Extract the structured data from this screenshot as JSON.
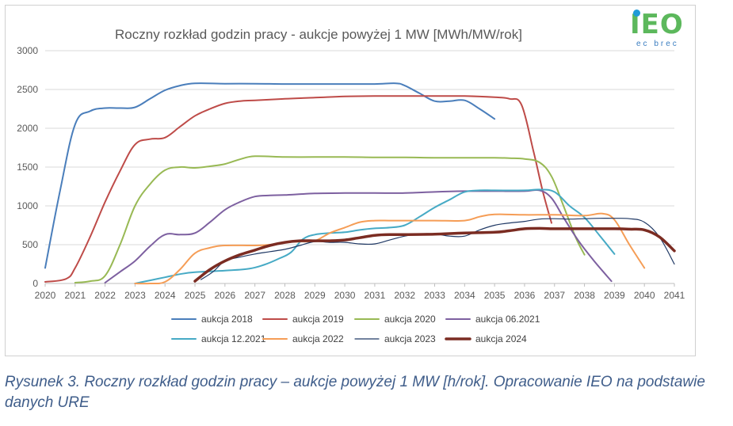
{
  "chart_data": {
    "type": "line",
    "title": "Roczny rozkład godzin pracy - aukcje powyżej 1 MW [MWh/MW/rok]",
    "xlabel": "",
    "ylabel": "",
    "xlim": [
      2020,
      2041
    ],
    "ylim": [
      0,
      3000
    ],
    "x_ticks": [
      "2020",
      "2021",
      "2022",
      "2023",
      "2024",
      "2025",
      "2026",
      "2027",
      "2028",
      "2029",
      "2030",
      "2031",
      "2032",
      "2033",
      "2034",
      "2035",
      "2036",
      "2037",
      "2038",
      "2039",
      "2040",
      "2041"
    ],
    "y_ticks": [
      "0",
      "500",
      "1000",
      "1500",
      "2000",
      "2500",
      "3000"
    ],
    "grid": "horizontal",
    "legend_position": "bottom",
    "series": [
      {
        "name": "aukcja 2018",
        "color": "#4a7ebb",
        "width": 2,
        "points": [
          [
            2020,
            200
          ],
          [
            2020.5,
            1200
          ],
          [
            2021,
            2050
          ],
          [
            2021.5,
            2220
          ],
          [
            2022,
            2260
          ],
          [
            2022.5,
            2260
          ],
          [
            2023,
            2270
          ],
          [
            2023.5,
            2380
          ],
          [
            2024,
            2490
          ],
          [
            2024.5,
            2550
          ],
          [
            2025,
            2580
          ],
          [
            2026,
            2575
          ],
          [
            2027,
            2575
          ],
          [
            2028,
            2570
          ],
          [
            2029,
            2570
          ],
          [
            2030,
            2570
          ],
          [
            2031,
            2570
          ],
          [
            2031.7,
            2580
          ],
          [
            2032,
            2550
          ],
          [
            2032.5,
            2450
          ],
          [
            2033,
            2350
          ],
          [
            2033.5,
            2350
          ],
          [
            2034,
            2360
          ],
          [
            2034.5,
            2250
          ],
          [
            2035,
            2120
          ]
        ]
      },
      {
        "name": "aukcja 2019",
        "color": "#be4b48",
        "width": 2,
        "points": [
          [
            2020,
            20
          ],
          [
            2020.7,
            60
          ],
          [
            2021,
            200
          ],
          [
            2021.5,
            600
          ],
          [
            2022,
            1050
          ],
          [
            2022.5,
            1450
          ],
          [
            2023,
            1790
          ],
          [
            2023.5,
            1860
          ],
          [
            2024,
            1880
          ],
          [
            2024.5,
            2020
          ],
          [
            2025,
            2160
          ],
          [
            2025.5,
            2250
          ],
          [
            2026,
            2320
          ],
          [
            2026.5,
            2350
          ],
          [
            2027,
            2360
          ],
          [
            2028,
            2380
          ],
          [
            2029,
            2395
          ],
          [
            2030,
            2410
          ],
          [
            2031,
            2415
          ],
          [
            2032,
            2415
          ],
          [
            2033,
            2415
          ],
          [
            2034,
            2415
          ],
          [
            2035,
            2400
          ],
          [
            2035.5,
            2380
          ],
          [
            2035.9,
            2300
          ],
          [
            2036.3,
            1700
          ],
          [
            2036.6,
            1200
          ],
          [
            2036.9,
            780
          ]
        ]
      },
      {
        "name": "aukcja 2020",
        "color": "#98b954",
        "width": 2,
        "points": [
          [
            2021,
            10
          ],
          [
            2021.5,
            30
          ],
          [
            2022,
            100
          ],
          [
            2022.5,
            500
          ],
          [
            2023,
            1000
          ],
          [
            2023.5,
            1280
          ],
          [
            2024,
            1460
          ],
          [
            2024.5,
            1500
          ],
          [
            2025,
            1490
          ],
          [
            2025.5,
            1510
          ],
          [
            2026,
            1540
          ],
          [
            2026.5,
            1600
          ],
          [
            2027,
            1640
          ],
          [
            2028,
            1630
          ],
          [
            2029,
            1630
          ],
          [
            2030,
            1630
          ],
          [
            2031,
            1625
          ],
          [
            2032,
            1625
          ],
          [
            2033,
            1620
          ],
          [
            2034,
            1620
          ],
          [
            2035,
            1620
          ],
          [
            2035.5,
            1615
          ],
          [
            2036,
            1605
          ],
          [
            2036.5,
            1560
          ],
          [
            2036.9,
            1380
          ],
          [
            2037.3,
            1000
          ],
          [
            2037.7,
            600
          ],
          [
            2038,
            370
          ]
        ]
      },
      {
        "name": "aukcja 06.2021",
        "color": "#7d60a0",
        "width": 2,
        "points": [
          [
            2022,
            10
          ],
          [
            2022.5,
            150
          ],
          [
            2023,
            290
          ],
          [
            2023.5,
            480
          ],
          [
            2024,
            630
          ],
          [
            2024.5,
            630
          ],
          [
            2025,
            650
          ],
          [
            2025.5,
            790
          ],
          [
            2026,
            950
          ],
          [
            2026.5,
            1050
          ],
          [
            2027,
            1120
          ],
          [
            2027.5,
            1135
          ],
          [
            2028,
            1140
          ],
          [
            2029,
            1160
          ],
          [
            2030,
            1165
          ],
          [
            2031,
            1165
          ],
          [
            2032,
            1165
          ],
          [
            2033,
            1180
          ],
          [
            2034,
            1190
          ],
          [
            2035,
            1190
          ],
          [
            2036,
            1190
          ],
          [
            2036.5,
            1200
          ],
          [
            2036.9,
            1100
          ],
          [
            2037.3,
            850
          ],
          [
            2037.8,
            550
          ],
          [
            2038.3,
            300
          ],
          [
            2038.9,
            30
          ]
        ]
      },
      {
        "name": "aukcja 12.2021",
        "color": "#46aac5",
        "width": 2,
        "points": [
          [
            2023,
            0
          ],
          [
            2023.5,
            40
          ],
          [
            2024,
            80
          ],
          [
            2024.5,
            120
          ],
          [
            2025,
            145
          ],
          [
            2026,
            165
          ],
          [
            2026.8,
            190
          ],
          [
            2027.3,
            240
          ],
          [
            2027.8,
            320
          ],
          [
            2028.2,
            400
          ],
          [
            2028.6,
            570
          ],
          [
            2029,
            630
          ],
          [
            2029.5,
            650
          ],
          [
            2030,
            660
          ],
          [
            2030.5,
            690
          ],
          [
            2031,
            710
          ],
          [
            2031.5,
            720
          ],
          [
            2032,
            750
          ],
          [
            2032.5,
            860
          ],
          [
            2033,
            980
          ],
          [
            2033.5,
            1080
          ],
          [
            2034,
            1180
          ],
          [
            2034.5,
            1200
          ],
          [
            2035,
            1200
          ],
          [
            2036,
            1200
          ],
          [
            2036.5,
            1210
          ],
          [
            2037,
            1180
          ],
          [
            2037.5,
            1000
          ],
          [
            2038,
            850
          ],
          [
            2038.5,
            620
          ],
          [
            2039,
            380
          ]
        ]
      },
      {
        "name": "aukcja 2022",
        "color": "#f59d56",
        "width": 2,
        "points": [
          [
            2023,
            0
          ],
          [
            2023.5,
            0
          ],
          [
            2024,
            20
          ],
          [
            2024.5,
            180
          ],
          [
            2025,
            390
          ],
          [
            2025.5,
            460
          ],
          [
            2026,
            490
          ],
          [
            2027,
            490
          ],
          [
            2027.5,
            500
          ],
          [
            2028,
            530
          ],
          [
            2028.5,
            540
          ],
          [
            2029,
            550
          ],
          [
            2029.5,
            650
          ],
          [
            2030,
            720
          ],
          [
            2030.5,
            790
          ],
          [
            2031,
            810
          ],
          [
            2031.5,
            810
          ],
          [
            2032,
            810
          ],
          [
            2033,
            810
          ],
          [
            2034,
            810
          ],
          [
            2034.5,
            860
          ],
          [
            2035,
            890
          ],
          [
            2036,
            885
          ],
          [
            2037,
            885
          ],
          [
            2038,
            875
          ],
          [
            2038.6,
            900
          ],
          [
            2039,
            820
          ],
          [
            2039.5,
            500
          ],
          [
            2040,
            200
          ]
        ]
      },
      {
        "name": "aukcja 2023",
        "color": "#1f3864",
        "width": 1.2,
        "points": [
          [
            2025.2,
            50
          ],
          [
            2025.6,
            150
          ],
          [
            2026,
            290
          ],
          [
            2026.5,
            340
          ],
          [
            2027,
            380
          ],
          [
            2027.5,
            410
          ],
          [
            2028,
            440
          ],
          [
            2028.5,
            490
          ],
          [
            2029,
            540
          ],
          [
            2029.5,
            530
          ],
          [
            2030,
            530
          ],
          [
            2030.5,
            510
          ],
          [
            2031,
            510
          ],
          [
            2031.5,
            560
          ],
          [
            2032,
            610
          ],
          [
            2032.5,
            640
          ],
          [
            2033,
            640
          ],
          [
            2033.5,
            610
          ],
          [
            2034,
            610
          ],
          [
            2034.5,
            690
          ],
          [
            2035,
            750
          ],
          [
            2035.5,
            780
          ],
          [
            2036,
            800
          ],
          [
            2036.5,
            830
          ],
          [
            2037,
            835
          ],
          [
            2037.5,
            830
          ],
          [
            2038,
            835
          ],
          [
            2038.5,
            840
          ],
          [
            2039,
            840
          ],
          [
            2039.5,
            835
          ],
          [
            2040,
            790
          ],
          [
            2040.5,
            600
          ],
          [
            2041,
            250
          ]
        ]
      },
      {
        "name": "aukcja 2024",
        "color": "#7b2c22",
        "width": 3.5,
        "points": [
          [
            2025,
            30
          ],
          [
            2025.5,
            180
          ],
          [
            2026,
            290
          ],
          [
            2026.5,
            370
          ],
          [
            2027,
            430
          ],
          [
            2027.5,
            490
          ],
          [
            2028,
            530
          ],
          [
            2028.5,
            550
          ],
          [
            2029,
            550
          ],
          [
            2029.5,
            550
          ],
          [
            2030,
            560
          ],
          [
            2030.5,
            590
          ],
          [
            2031,
            620
          ],
          [
            2031.5,
            630
          ],
          [
            2032,
            630
          ],
          [
            2033,
            635
          ],
          [
            2034,
            650
          ],
          [
            2035,
            660
          ],
          [
            2035.5,
            680
          ],
          [
            2036,
            705
          ],
          [
            2036.5,
            710
          ],
          [
            2037,
            705
          ],
          [
            2038,
            705
          ],
          [
            2039,
            705
          ],
          [
            2039.5,
            700
          ],
          [
            2040,
            690
          ],
          [
            2040.5,
            600
          ],
          [
            2041,
            420
          ]
        ]
      }
    ]
  },
  "logo": {
    "mark": "IEO",
    "sub": "ec brec"
  },
  "caption": "Rysunek 3. Roczny rozkład godzin pracy – aukcje powyżej 1 MW [h/rok]. Opracowanie IEO na podstawie danych URE"
}
